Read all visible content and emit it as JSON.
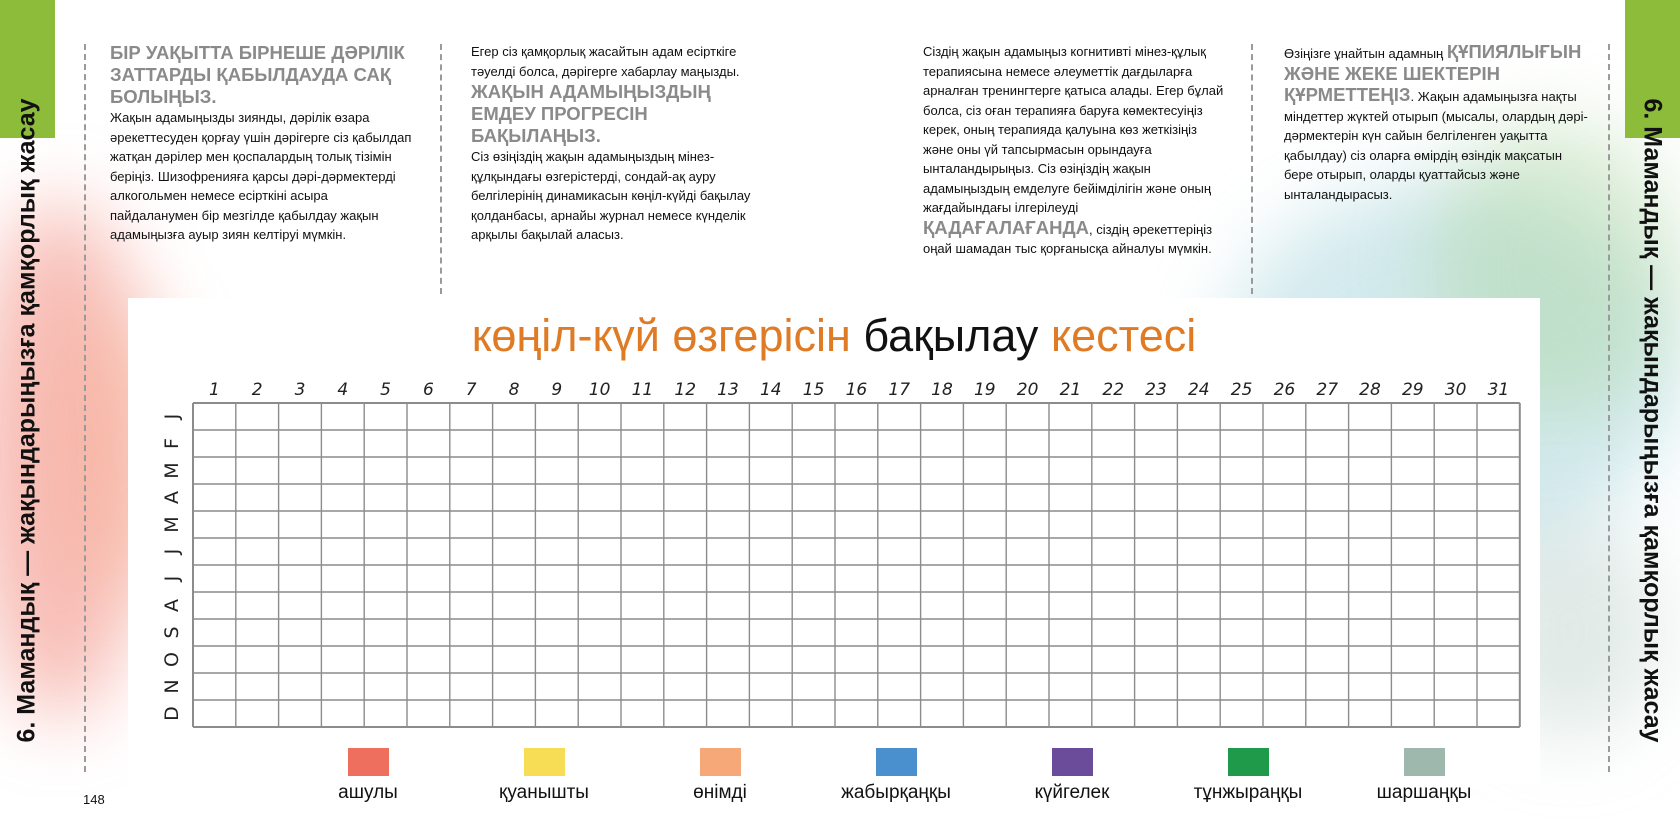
{
  "page_number": "148",
  "side_title": "6. Мамандық — жақындарыңызға қамқорлық жасау",
  "columns": [
    {
      "heading": "БІР УАҚЫТТА БІРНЕШЕ ДӘРІЛІК ЗАТТАРДЫ ҚАБЫЛДАУДА САҚ БОЛЫҢЫЗ",
      "body": "Жақын адамыңызды зиянды, дәрілік өзара әрекеттесуден қорғау үшін дәрігерге сіз қабылдап жатқан дәрілер мен қоспалардың толық тізімін беріңіз. Шизофренияға қарсы дәрі-дәрмектерді алкогольмен немесе есірткіні асыра пайдаланумен бір мезгілде қабылдау жақын адамыңызға ауыр зиян келтіруі мүмкін."
    },
    {
      "intro": "Егер сіз қамқорлық жасайтын адам есірткіге тәуелді болса, дәрігерге хабарлау маңызды.",
      "heading": "ЖАҚЫН АДАМЫҢЫЗДЫҢ ЕМДЕУ ПРОГРЕСІН БАҚЫЛАҢЫЗ",
      "body": "Сіз өзіңіздің жақын адамыңыздың мінез-құлқындағы өзгерістерді, сондай-ақ ауру белгілерінің динамикасын көңіл-күйді бақылау қолданбасы, арнайы журнал немесе күнделік арқылы бақылай аласыз."
    },
    {
      "body_before": "Сіздің жақын адамыңыз когнитивті мінез-құлық терапиясына немесе әлеуметтік дағдыларға арналған тренингтерге қатыса алады. Егер бұлай болса, сіз оған терапияға баруға көмектесуіңіз керек, оның терапияда қалуына көз жеткізіңіз және оны үй тапсырмасын орындауға ынталандырыңыз. Сіз өзіңіздің жақын адамыңыздың емделуге бейімділігін және оның жағдайындағы ілгерілеуді",
      "emphasis": "ҚАДАҒАЛАҒАНДА",
      "body_after": ", сіздің әрекеттеріңіз оңай шамадан тыс қорғанысқа айналуы мүмкін."
    },
    {
      "intro": "Өзіңізге ұнайтын адамның",
      "heading": "ҚҰПИЯЛЫҒЫН ЖӘНЕ ЖЕКЕ ШЕКТЕРІН ҚҰРМЕТТЕҢІЗ",
      "body": ". Жақын адамыңызға нақты міндеттер жүктей отырып (мысалы, олардың дәрі-дәрмектерін күн сайын белгіленген уақытта қабылдау) сіз оларға өмірдің өзіндік мақсатын бере отырып, оларды қуаттайсыз және ынталандырасыз."
    }
  ],
  "tracker": {
    "title_part1": "көңіл-күй өзгерісін",
    "title_part2": "бақылау",
    "title_part3": "кестесі",
    "days": [
      "1",
      "2",
      "3",
      "4",
      "5",
      "6",
      "7",
      "8",
      "9",
      "10",
      "11",
      "12",
      "13",
      "14",
      "15",
      "16",
      "17",
      "18",
      "19",
      "20",
      "21",
      "22",
      "23",
      "24",
      "25",
      "26",
      "27",
      "28",
      "29",
      "30",
      "31"
    ],
    "months": [
      "J",
      "F",
      "M",
      "A",
      "M",
      "J",
      "J",
      "A",
      "S",
      "O",
      "N",
      "D"
    ],
    "legend": [
      {
        "label": "ашулы",
        "color": "#ef6f5e"
      },
      {
        "label": "қуанышты",
        "color": "#f7dc55"
      },
      {
        "label": "өнімді",
        "color": "#f6a878"
      },
      {
        "label": "жабырқаңқы",
        "color": "#4a90cf"
      },
      {
        "label": "күйгелек",
        "color": "#6b4c9a"
      },
      {
        "label": "тұнжыраңқы",
        "color": "#1f9a4b"
      },
      {
        "label": "шаршаңқы",
        "color": "#9fb8ad"
      }
    ]
  },
  "colors": {
    "accent_green": "#8dbb3a",
    "title_orange": "#e07b25",
    "heading_gray": "#8a8a8a",
    "grid_line": "#8c8c8c"
  }
}
